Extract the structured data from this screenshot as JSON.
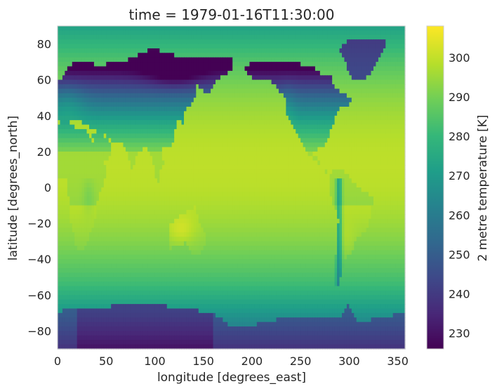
{
  "chart_data": {
    "type": "heatmap",
    "title": "time = 1979-01-16T11:30:00",
    "xlabel": "longitude [degrees_east]",
    "ylabel": "latitude [degrees_north]",
    "xlim": [
      0,
      357.5
    ],
    "ylim": [
      -90,
      90
    ],
    "xticks": [
      0,
      50,
      100,
      150,
      200,
      250,
      300,
      350
    ],
    "yticks": [
      -80,
      -60,
      -40,
      -20,
      0,
      20,
      40,
      60,
      80
    ],
    "colorbar": {
      "label": "2 metre temperature [K]",
      "min": 226,
      "max": 308,
      "ticks": [
        230,
        240,
        250,
        260,
        270,
        280,
        290,
        300
      ],
      "colormap": "viridis",
      "colors": [
        "#440154",
        "#482878",
        "#3e4989",
        "#31688e",
        "#26828e",
        "#1f9e89",
        "#35b779",
        "#6ece58",
        "#b5de2b",
        "#fde725"
      ]
    },
    "grid": false,
    "grid_resolution": {
      "lon_step": 2.5,
      "lat_step": 2.5
    },
    "values_note_key": "2 metre temperature [K]"
  }
}
